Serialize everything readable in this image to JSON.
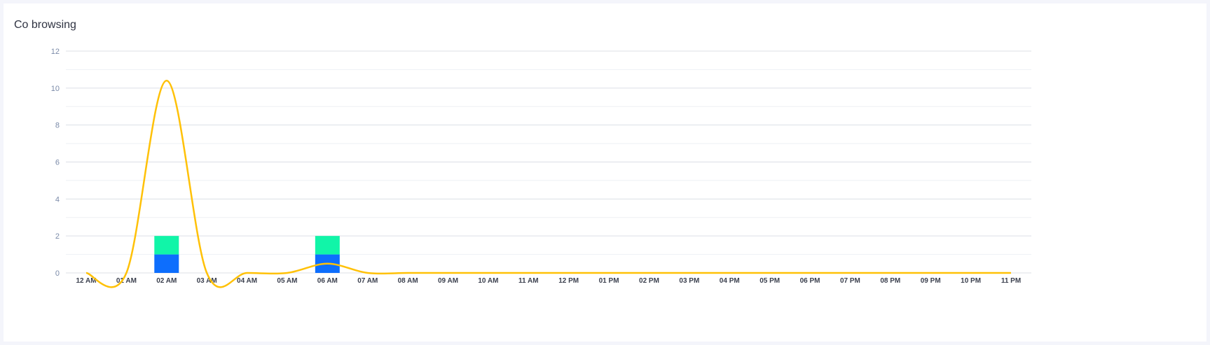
{
  "card": {
    "title": "Co browsing"
  },
  "chart_data": {
    "type": "bar",
    "categories": [
      "12 AM",
      "01 AM",
      "02 AM",
      "03 AM",
      "04 AM",
      "05 AM",
      "06 AM",
      "07 AM",
      "08 AM",
      "09 AM",
      "10 AM",
      "11 AM",
      "12 PM",
      "01 PM",
      "02 PM",
      "03 PM",
      "04 PM",
      "05 PM",
      "06 PM",
      "07 PM",
      "08 PM",
      "09 PM",
      "10 PM",
      "11 PM"
    ],
    "yticks": [
      0,
      2,
      4,
      6,
      8,
      10,
      12
    ],
    "ylim": [
      0,
      12
    ],
    "grid": true,
    "stacked": true,
    "series": [
      {
        "type": "bar",
        "color": "#0d6efd",
        "values": [
          0,
          0,
          1,
          0,
          0,
          0,
          1,
          0,
          0,
          0,
          0,
          0,
          0,
          0,
          0,
          0,
          0,
          0,
          0,
          0,
          0,
          0,
          0,
          0
        ]
      },
      {
        "type": "bar",
        "color": "#11f5a8",
        "values": [
          0,
          0,
          1,
          0,
          0,
          0,
          1,
          0,
          0,
          0,
          0,
          0,
          0,
          0,
          0,
          0,
          0,
          0,
          0,
          0,
          0,
          0,
          0,
          0
        ]
      },
      {
        "type": "line",
        "smooth": true,
        "color": "#ffc107",
        "values": [
          0,
          0,
          10.4,
          0,
          0,
          0,
          0.5,
          0,
          0,
          0,
          0,
          0,
          0,
          0,
          0,
          0,
          0,
          0,
          0,
          0,
          0,
          0,
          0,
          0
        ]
      }
    ]
  }
}
